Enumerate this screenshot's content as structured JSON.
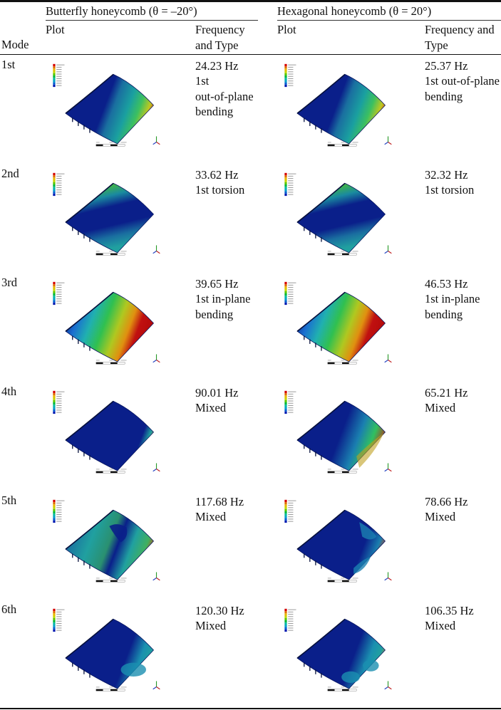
{
  "table": {
    "header": {
      "mode_label": "Mode",
      "groups": [
        {
          "title": "Butterfly honeycomb (θ = –20°)",
          "plot_label": "Plot",
          "freq_label": "Frequency\nand Type"
        },
        {
          "title": "Hexagonal honeycomb (θ = 20°)",
          "plot_label": "Plot",
          "freq_label": "Frequency and\nType"
        }
      ]
    },
    "rows": [
      {
        "mode": "1st",
        "butterfly": {
          "freq": "24.23 Hz",
          "type": "1st\nout-of-plane\nbending"
        },
        "hexagonal": {
          "freq": "25.37 Hz",
          "type": "1st out-of-plane\nbending"
        }
      },
      {
        "mode": "2nd",
        "butterfly": {
          "freq": "33.62 Hz",
          "type": "1st torsion"
        },
        "hexagonal": {
          "freq": "32.32 Hz",
          "type": "1st torsion"
        }
      },
      {
        "mode": "3rd",
        "butterfly": {
          "freq": "39.65 Hz",
          "type": "1st in-plane\nbending"
        },
        "hexagonal": {
          "freq": "46.53 Hz",
          "type": "1st in-plane\nbending"
        }
      },
      {
        "mode": "4th",
        "butterfly": {
          "freq": "90.01 Hz",
          "type": "Mixed"
        },
        "hexagonal": {
          "freq": "65.21 Hz",
          "type": "Mixed"
        }
      },
      {
        "mode": "5th",
        "butterfly": {
          "freq": "117.68 Hz",
          "type": "Mixed"
        },
        "hexagonal": {
          "freq": "78.66 Hz",
          "type": "Mixed"
        }
      },
      {
        "mode": "6th",
        "butterfly": {
          "freq": "120.30 Hz",
          "type": "Mixed"
        },
        "hexagonal": {
          "freq": "106.35 Hz",
          "type": "Mixed"
        }
      }
    ]
  },
  "plot_legend": {
    "colors": [
      "#d40000",
      "#e06a00",
      "#e8b800",
      "#c8d400",
      "#5ac800",
      "#00b83a",
      "#00b8a0",
      "#00a0c8",
      "#0060d0",
      "#0018b0"
    ],
    "max_label": "Max",
    "min_label": "0 Min"
  },
  "scale_bar": {
    "ticks": [
      "0.000",
      "0.035",
      "0.070 (m)"
    ],
    "sub_ticks": [
      "0.018",
      "0.053"
    ]
  }
}
